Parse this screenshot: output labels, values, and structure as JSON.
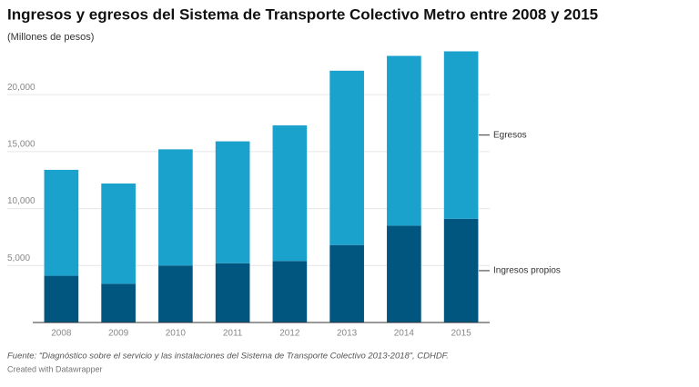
{
  "chart_data": {
    "type": "stacked_bar",
    "title": "Ingresos y egresos del Sistema de Transporte Colectivo Metro entre  2008 y 2015",
    "subtitle": "(Millones de pesos)",
    "source": "Fuente: “Diagnóstico sobre el servicio y las instalaciones del Sistema de Transporte Colectivo 2013-2018”, CDHDF.",
    "credit": "Created with Datawrapper",
    "categories": [
      "2008",
      "2009",
      "2010",
      "2011",
      "2012",
      "2013",
      "2014",
      "2015"
    ],
    "series": [
      {
        "name": "Ingresos propios",
        "color": "#00567e",
        "values": [
          4100,
          3400,
          5000,
          5200,
          5400,
          6800,
          8500,
          9100
        ]
      },
      {
        "name": "Egresos",
        "color": "#1aa1cc",
        "values": [
          9300,
          8800,
          10200,
          10700,
          11900,
          15300,
          14900,
          14700
        ]
      }
    ],
    "ylim": [
      0,
      24000
    ],
    "yticks": [
      {
        "value": 5000,
        "label": "5,000"
      },
      {
        "value": 10000,
        "label": "10,000"
      },
      {
        "value": 15000,
        "label": "15,000"
      },
      {
        "value": 20000,
        "label": "20,000"
      }
    ],
    "grid": true
  }
}
